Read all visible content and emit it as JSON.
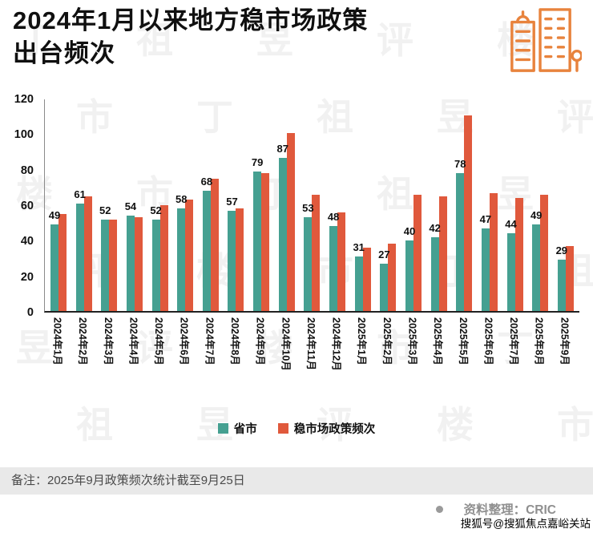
{
  "header": {
    "title_line1": "2024年1月以来地方稳市场政策",
    "title_line2": "出台频次"
  },
  "colors": {
    "icon": "#E8833D",
    "teal": "#45A091",
    "orange": "#E0593C"
  },
  "chart_data": {
    "type": "bar",
    "title": "2024年1月以来地方稳市场政策出台频次",
    "categories": [
      "2024年1月",
      "2024年2月",
      "2024年3月",
      "2024年4月",
      "2024年5月",
      "2024年6月",
      "2024年7月",
      "2024年8月",
      "2024年9月",
      "2024年10月",
      "2024年11月",
      "2024年12月",
      "2025年1月",
      "2025年2月",
      "2025年3月",
      "2025年4月",
      "2025年5月",
      "2025年6月",
      "2025年7月",
      "2025年8月",
      "2025年9月"
    ],
    "series": [
      {
        "name": "省市",
        "color": "#45A091",
        "show_labels": true,
        "values": [
          49,
          61,
          52,
          54,
          52,
          58,
          68,
          57,
          79,
          87,
          53,
          48,
          31,
          27,
          40,
          42,
          78,
          47,
          44,
          49,
          29
        ]
      },
      {
        "name": "稳市场政策频次",
        "color": "#E0593C",
        "show_labels": false,
        "values": [
          55,
          65,
          52,
          53,
          60,
          63,
          75,
          58,
          78,
          101,
          66,
          56,
          36,
          38,
          66,
          65,
          111,
          67,
          64,
          66,
          37
        ]
      }
    ],
    "xlabel": "",
    "ylabel": "",
    "ylim": [
      0,
      120
    ],
    "yticks": [
      0,
      20,
      40,
      60,
      80,
      100,
      120
    ],
    "grid": false,
    "legend_position": "bottom"
  },
  "footer": {
    "note": "备注：2025年9月政策频次统计截至9月25日",
    "source": "资料整理：CRIC",
    "sohu_watermark": "搜狐号@搜狐焦点嘉峪关站"
  },
  "watermark": {
    "text": "丁祖昱评楼市"
  }
}
